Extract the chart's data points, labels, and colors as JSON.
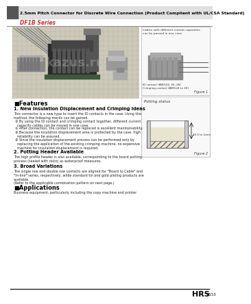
{
  "title": "2.5mm Pitch Connector for Discrete Wire Connection (Product Compliant with UL/CSA Standard)",
  "series": "DF1B Series",
  "bg_color": "#ffffff",
  "features_heading": "■Features",
  "feature1_heading": "1. New Insulation Displacement and Crimping Ideas",
  "feature2_heading": "2. Potting Header Available",
  "feature3_heading": "3. Broad Variations",
  "applications_heading": "■Applications",
  "applications_body": "Business equipment, particularly including the copy machine and printer",
  "footer_brand": "HRS",
  "footer_code": "B153",
  "fig1_caption": "Figure 1",
  "fig2_caption": "Figure 2",
  "fig1_note1": "Cables with different current capacities\ncan be passed in one case.",
  "fig1_note2": "ID contact (AWG24, 26, 28)\nCrimping contact (AWG24 to 26)",
  "fig2_title": "Potting status",
  "fig2_note": "10.5 to 1mm",
  "header_dark_color": "#555555",
  "header_light_color": "#e0e0e0",
  "series_color": "#cc3333",
  "text_color": "#111111",
  "body_text_color": "#222222"
}
